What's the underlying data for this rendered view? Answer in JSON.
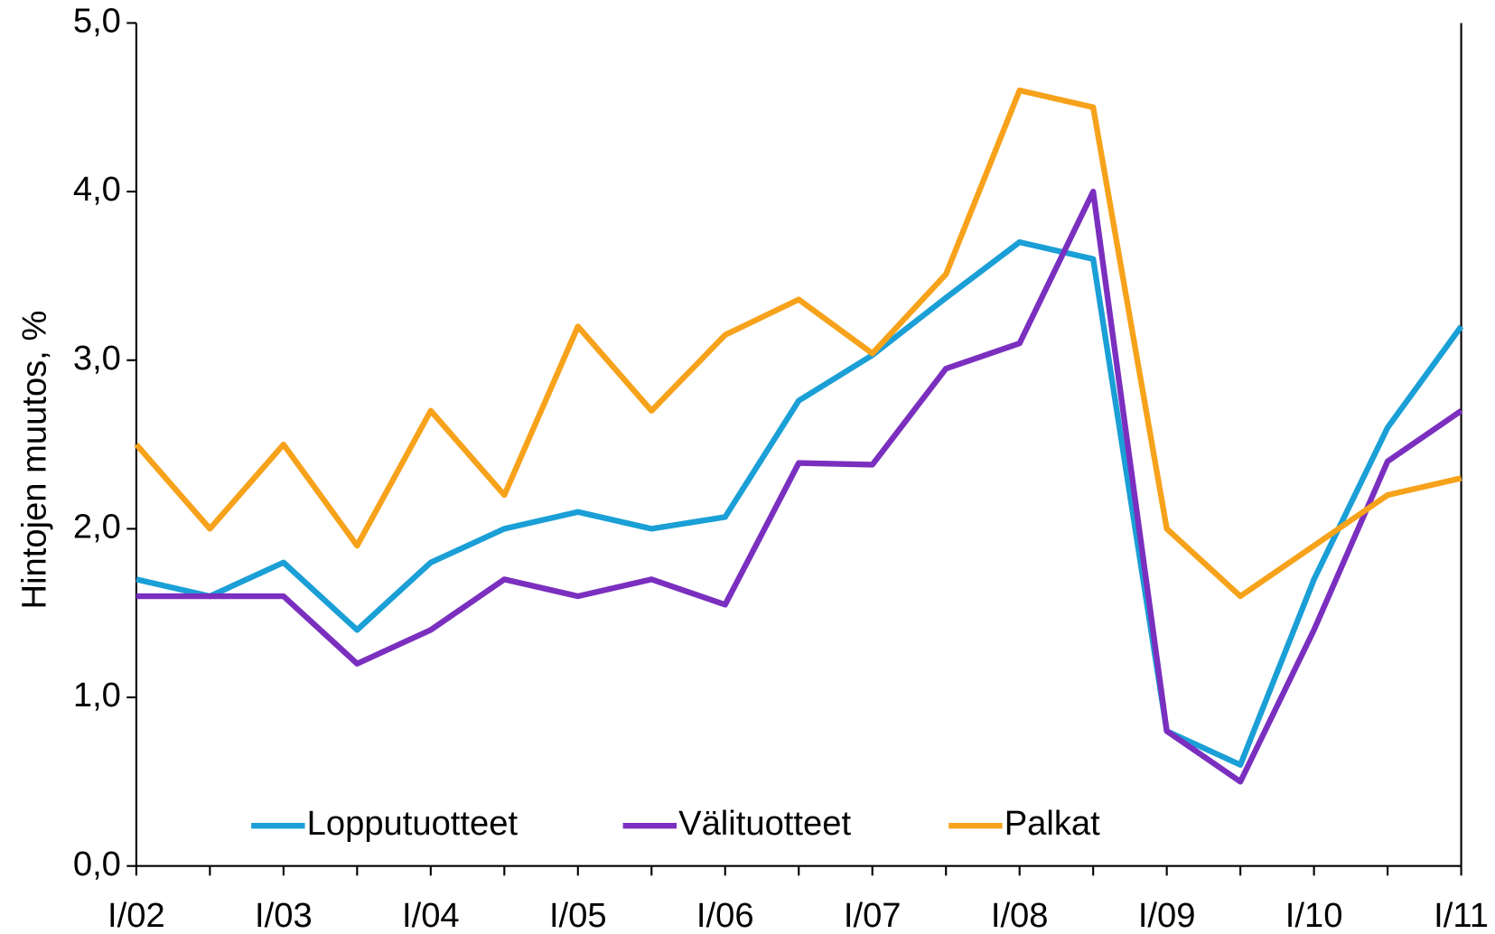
{
  "chart_data": {
    "type": "line",
    "y_label": "Hintojen muutos, %",
    "categories": [
      "I/02",
      null,
      "I/03",
      null,
      "I/04",
      null,
      "I/05",
      null,
      "I/06",
      null,
      "I/07",
      null,
      "I/08",
      null,
      "I/09",
      null,
      "I/10",
      null,
      "I/11"
    ],
    "series": [
      {
        "name": "Lopputuotteet",
        "color": "#1a9fd6",
        "values": [
          1.7,
          1.6,
          1.8,
          1.4,
          1.8,
          2.0,
          2.1,
          2.0,
          2.07,
          2.76,
          3.03,
          3.37,
          3.7,
          3.6,
          0.8,
          0.6,
          1.7,
          2.6,
          3.2
        ]
      },
      {
        "name": "Välituotteet",
        "color": "#7b2fbf",
        "values": [
          1.6,
          1.6,
          1.6,
          1.2,
          1.4,
          1.7,
          1.6,
          1.7,
          1.55,
          2.39,
          2.38,
          2.95,
          3.1,
          4.0,
          0.8,
          0.5,
          1.4,
          2.4,
          2.7
        ]
      },
      {
        "name": "Palkat",
        "color": "#f7a21b",
        "values": [
          2.5,
          2.0,
          2.5,
          1.9,
          2.7,
          2.2,
          3.2,
          2.7,
          3.15,
          3.36,
          3.04,
          3.51,
          4.6,
          4.5,
          2.0,
          1.6,
          1.9,
          2.2,
          2.3
        ]
      }
    ],
    "ylim": [
      0,
      5
    ],
    "yticks": [
      {
        "value": 0,
        "label": "0,0"
      },
      {
        "value": 1,
        "label": "1,0"
      },
      {
        "value": 2,
        "label": "2,0"
      },
      {
        "value": 3,
        "label": "3,0"
      },
      {
        "value": 4,
        "label": "4,0"
      },
      {
        "value": 5,
        "label": "5,0"
      }
    ],
    "legend": "bottom"
  }
}
